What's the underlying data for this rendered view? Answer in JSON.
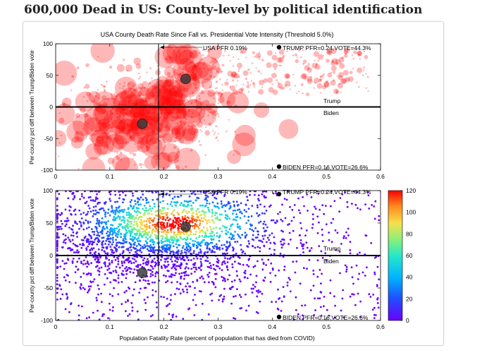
{
  "headline": "600,000 Dead in US:  County-level by political identification",
  "chart_data": [
    {
      "type": "scatter",
      "title": "USA County Death Rate Since Fall vs. Presidential Vote Intensity (Threshold 5.0%)",
      "xlabel": "",
      "ylabel": "Per-county pct diff between Trump/Biden vote",
      "xlim": [
        0,
        0.6
      ],
      "ylim": [
        -100,
        100
      ],
      "xticks": [
        "0",
        "0.1",
        "0.2",
        "0.3",
        "0.4",
        "0.5",
        "0.6"
      ],
      "yticks": [
        "100",
        "50",
        "0",
        "-50",
        "-100"
      ],
      "grid": false,
      "point_color": "#ff0000",
      "marker_size": "county population",
      "reference_lines": {
        "x": 0.19,
        "y": 0
      },
      "annotations": {
        "usa": "USA PFR 0.19%",
        "trump": "TRUMP PFR=0.24,VOTE=44.3%",
        "biden": "BIDEN PFR=0.16,VOTE=26.6%",
        "trump_region": "Trump",
        "biden_region": "Biden"
      },
      "markers": [
        {
          "label": "TRUMP",
          "x": 0.24,
          "y": 44.3
        },
        {
          "label": "BIDEN",
          "x": 0.16,
          "y": -26.6
        }
      ]
    },
    {
      "type": "scatter",
      "title": "",
      "xlabel": "Population Fatality Rate (percent of population that has died from COVID)",
      "ylabel": "Per-county pct diff between Trump/Biden vote",
      "xlim": [
        0,
        0.6
      ],
      "ylim": [
        -100,
        100
      ],
      "xticks": [
        "0",
        "0.1",
        "0.2",
        "0.3",
        "0.4",
        "0.5",
        "0.6"
      ],
      "yticks": [
        "100",
        "50",
        "0",
        "-50",
        "-100"
      ],
      "grid": false,
      "color_by": "point density",
      "colorbar": {
        "range": [
          0,
          120
        ],
        "ticks": [
          "120",
          "100",
          "80",
          "60",
          "40",
          "20",
          "0"
        ],
        "palette": "rainbow"
      },
      "reference_lines": {
        "x": 0.19,
        "y": 0
      },
      "annotations": {
        "usa": "USA PFR 0.19%",
        "trump": "TRUMP PFR=0.24,VOTE=44.3%",
        "biden": "BIDEN PFR=0.16,VOTE=26.6%",
        "trump_region": "Trump",
        "biden_region": "Biden"
      },
      "markers": [
        {
          "label": "TRUMP",
          "x": 0.24,
          "y": 44.3
        },
        {
          "label": "BIDEN",
          "x": 0.16,
          "y": -26.6
        }
      ]
    }
  ]
}
